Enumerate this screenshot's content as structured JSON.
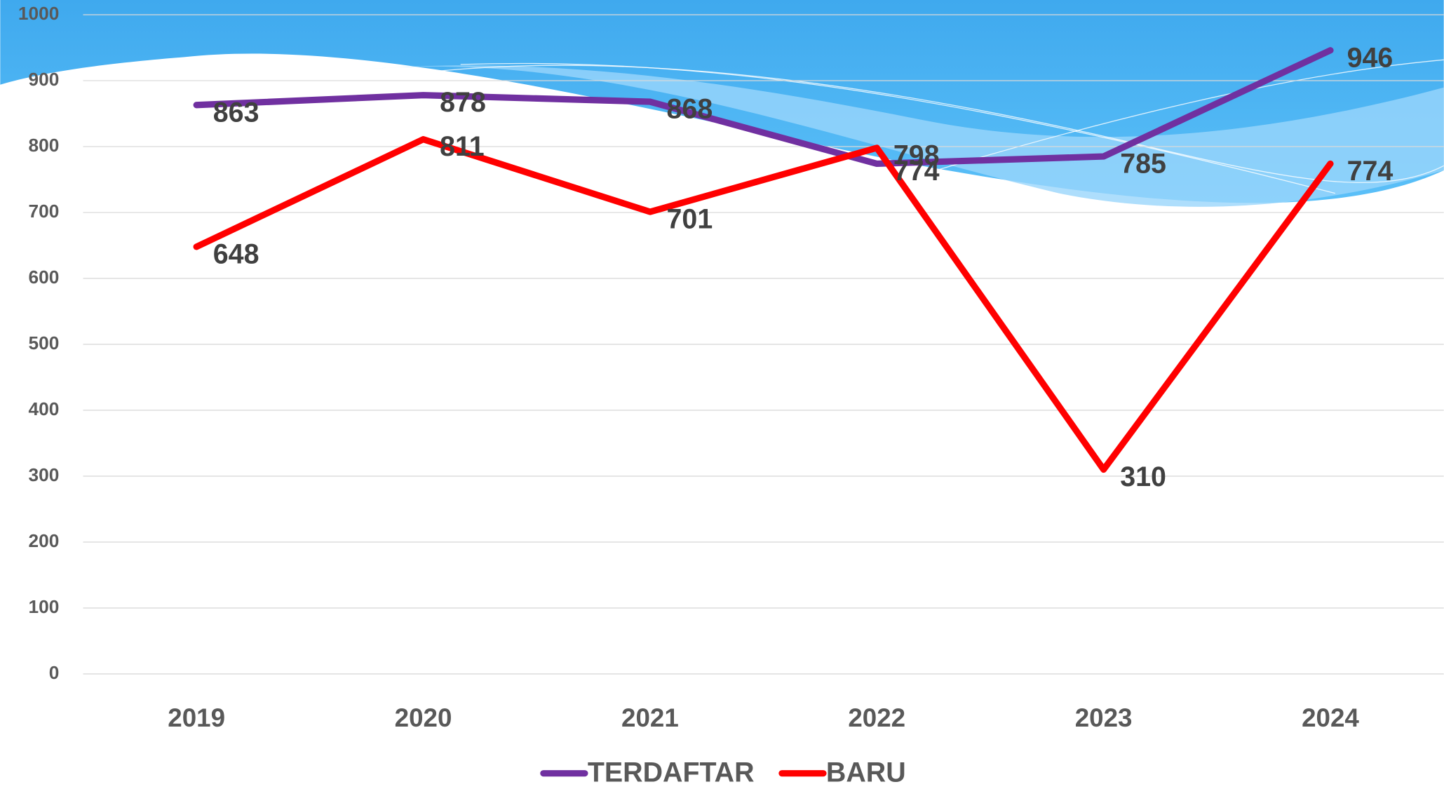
{
  "chart_data": {
    "type": "line",
    "categories": [
      "2019",
      "2020",
      "2021",
      "2022",
      "2023",
      "2024"
    ],
    "series": [
      {
        "name": "TERDAFTAR",
        "color": "#7030a0",
        "values": [
          863,
          878,
          868,
          774,
          785,
          946
        ]
      },
      {
        "name": "BARU",
        "color": "#ff0000",
        "values": [
          648,
          811,
          701,
          798,
          310,
          774
        ]
      }
    ],
    "ylim": [
      0,
      1000
    ],
    "yticks": [
      0,
      100,
      200,
      300,
      400,
      500,
      600,
      700,
      800,
      900,
      1000
    ],
    "grid": true,
    "legend": "bottom"
  }
}
